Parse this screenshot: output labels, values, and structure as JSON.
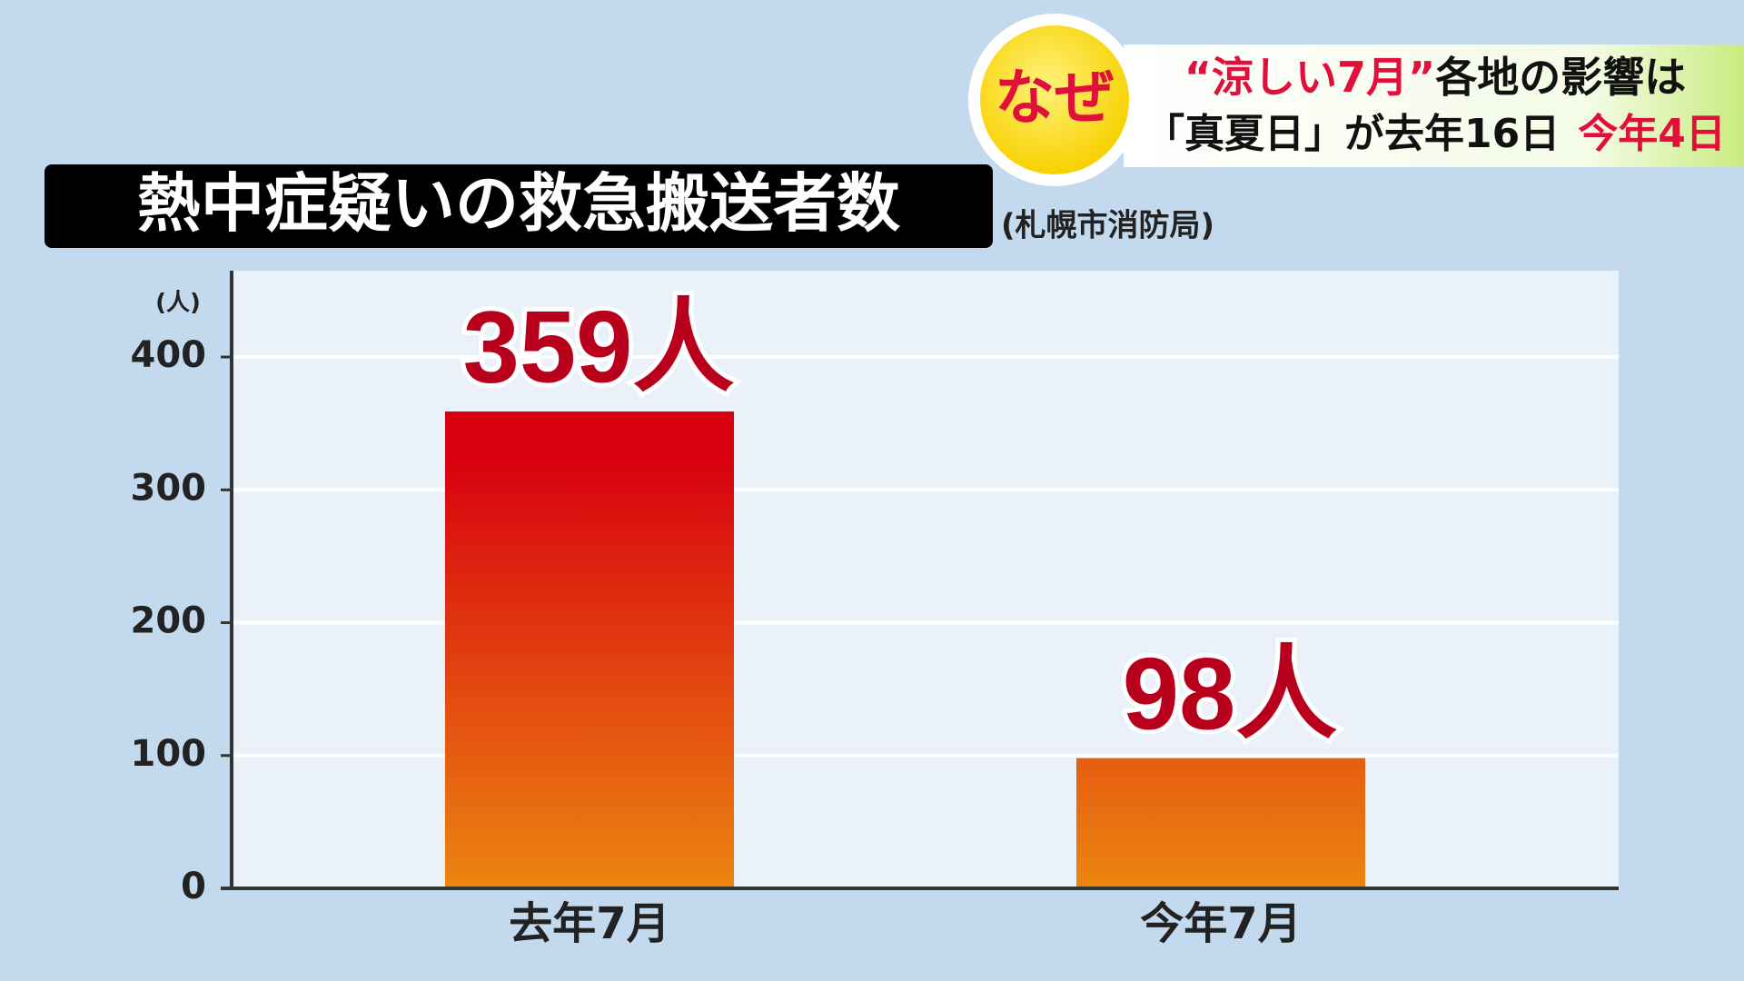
{
  "chart_data": {
    "type": "bar",
    "title": "熱中症疑いの救急搬送者数",
    "source": "(札幌市消防局)",
    "y_unit": "(人)",
    "categories": [
      "去年7月",
      "今年7月"
    ],
    "values": [
      359,
      98
    ],
    "value_labels": [
      "359人",
      "98人"
    ],
    "color_top": "#d8000f",
    "color_bottom": "#ec8510",
    "ylim": [
      0,
      465
    ],
    "yticks": [
      0,
      100,
      200,
      300,
      400
    ],
    "grid": true
  },
  "banner": {
    "badge": "なぜ",
    "line1": [
      "“涼しい7月”",
      "各地の影響は"
    ],
    "line2": [
      "「真夏日」が去年16日",
      "今年4日"
    ]
  }
}
